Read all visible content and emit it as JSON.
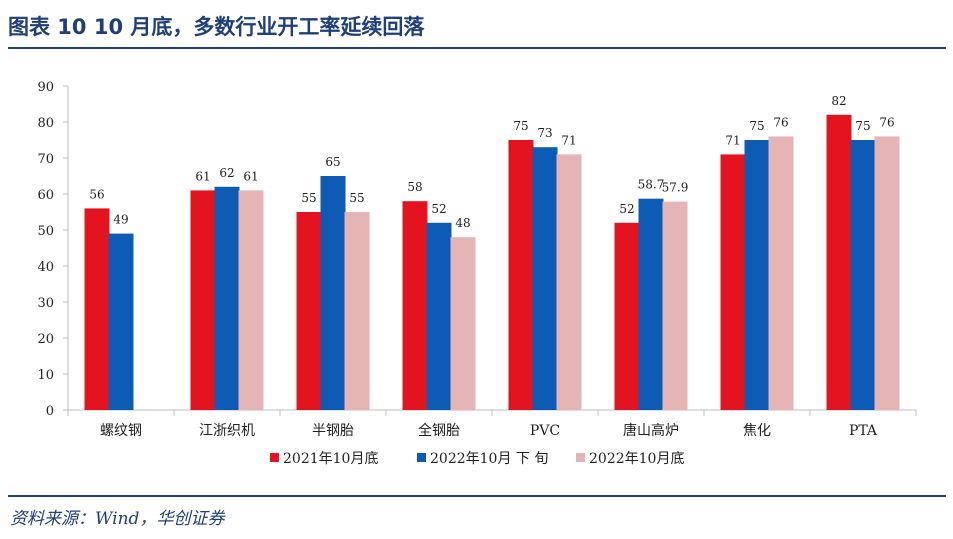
{
  "header": {
    "figure_title": "图表 10   10 月底，多数行业开工率延续回落"
  },
  "footer": {
    "source": "资料来源：Wind，华创证券"
  },
  "colors": {
    "header_blue": "#1f3f7a",
    "series_2021_oct_end": "#e3141f",
    "series_2022_oct_late": "#0d5bb5",
    "series_2022_oct_end": "#e5b5b5"
  },
  "chart_data": {
    "type": "bar",
    "title": "",
    "xlabel": "",
    "ylabel": "",
    "ylim": [
      0,
      90
    ],
    "yticks": [
      0,
      10,
      20,
      30,
      40,
      50,
      60,
      70,
      80,
      90
    ],
    "grid": false,
    "legend_position": "bottom",
    "categories": [
      "螺纹钢",
      "江浙织机",
      "半钢胎",
      "全钢胎",
      "PVC",
      "唐山高炉",
      "焦化",
      "PTA"
    ],
    "series": [
      {
        "name": "2021年10月底",
        "color": "#e3141f",
        "values": [
          56,
          61,
          55,
          58,
          75,
          52,
          71,
          82
        ],
        "labels": [
          "56",
          "61",
          "55",
          "58",
          "75",
          "52",
          "71",
          "82"
        ]
      },
      {
        "name": "2022年10月下旬",
        "color": "#0d5bb5",
        "values": [
          49,
          62,
          65,
          52,
          73,
          58.7,
          75,
          75
        ],
        "labels": [
          "49",
          "62",
          "65",
          "52",
          "73",
          "58.7",
          "75",
          "75"
        ]
      },
      {
        "name": "2022年10月底",
        "color": "#e5b5b5",
        "values": [
          null,
          61,
          55,
          48,
          71,
          57.9,
          76,
          76
        ],
        "labels": [
          "",
          "61",
          "55",
          "48",
          "71",
          "57.9",
          "76",
          "76"
        ]
      }
    ],
    "legend_labels": [
      "2021年10月底",
      "2022年10月 下 旬",
      "2022年10月底"
    ]
  }
}
